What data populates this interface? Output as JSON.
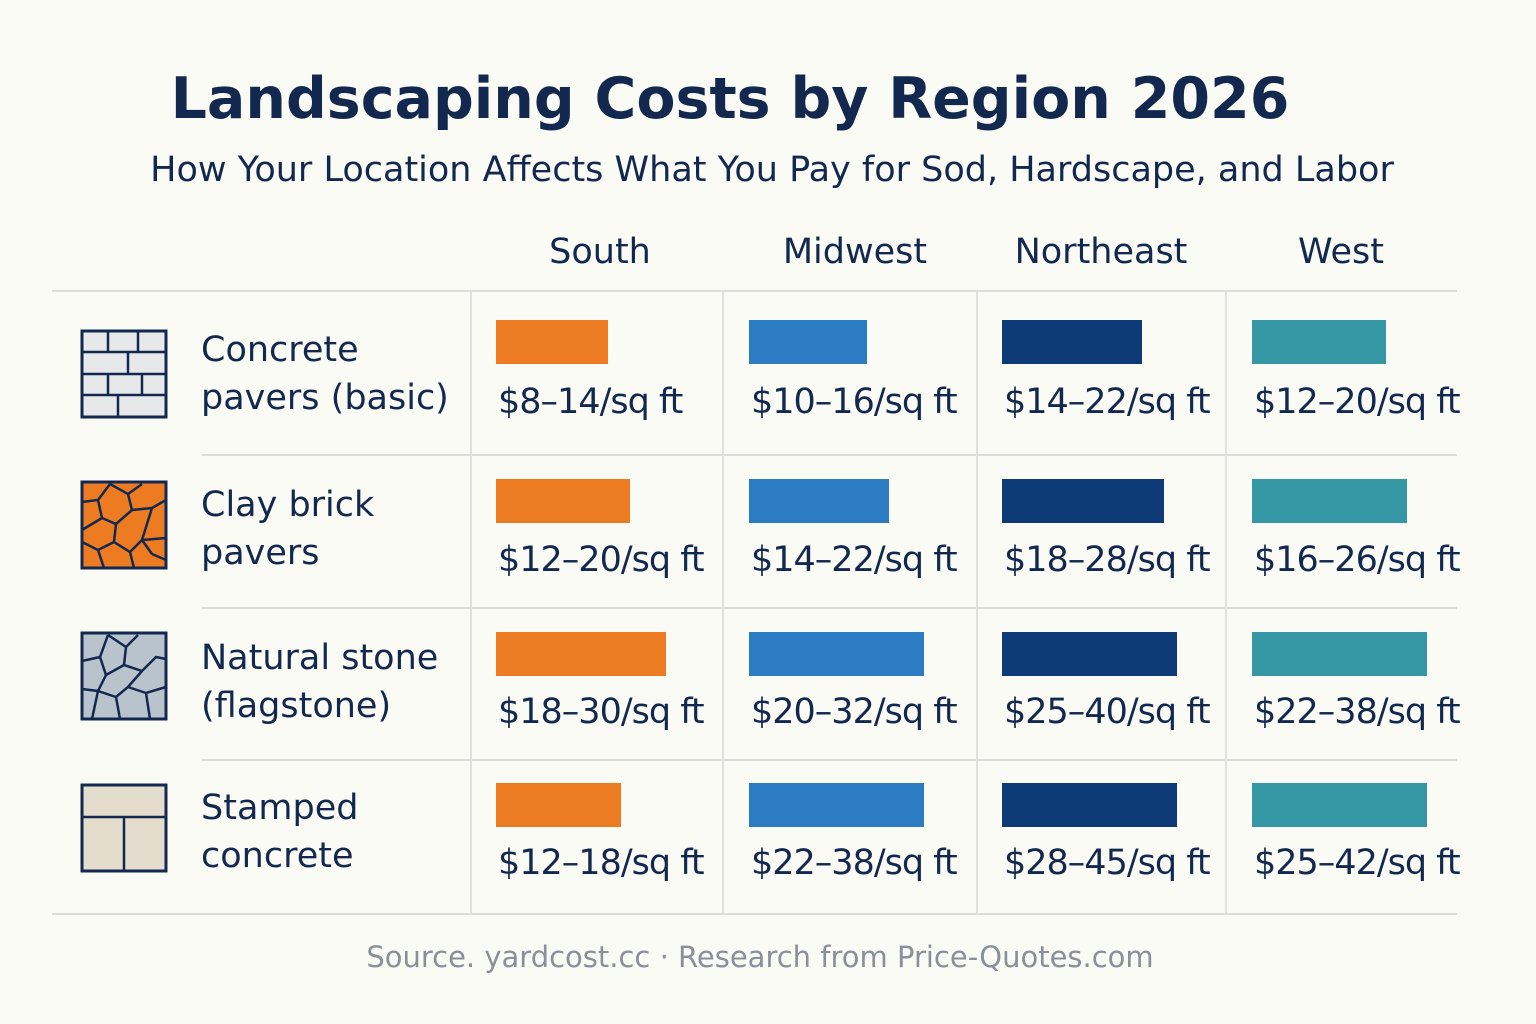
{
  "header": {
    "title": "Landscaping Costs by Region 2026",
    "subtitle": "How Your Location Affects What You Pay for Sod, Hardscape, and Labor"
  },
  "source": "Source. yardcost.cc · Research from Price-Quotes.com",
  "colors": {
    "South": "#ec7b22",
    "Midwest": "#2b7cc3",
    "Northeast": "#0e3a78",
    "West": "#3597a3"
  },
  "chart_data": {
    "type": "table",
    "title": "Landscaping Costs by Region 2026",
    "subtitle": "How Your Location Affects What You Pay for Sod, Hardscape, and Labor",
    "unit": "$/sq ft",
    "regions": [
      "South",
      "Midwest",
      "Northeast",
      "West"
    ],
    "rows": [
      {
        "material": [
          "Concrete",
          "pavers (basic)"
        ],
        "icon": "concrete-paver-icon",
        "labels": [
          "$8–14/sq ft",
          "$10–16/sq ft",
          "$14–22/sq ft",
          "$12–20/sq ft"
        ],
        "ranges": [
          [
            8,
            14
          ],
          [
            10,
            16
          ],
          [
            14,
            22
          ],
          [
            12,
            20
          ]
        ]
      },
      {
        "material": [
          "Clay brick",
          "pavers"
        ],
        "icon": "clay-brick-icon",
        "labels": [
          "$12–20/sq ft",
          "$14–22/sq ft",
          "$18–28/sq ft",
          "$16–26/sq ft"
        ],
        "ranges": [
          [
            12,
            20
          ],
          [
            14,
            22
          ],
          [
            18,
            28
          ],
          [
            16,
            26
          ]
        ]
      },
      {
        "material": [
          "Natural stone",
          "(flagstone)"
        ],
        "icon": "flagstone-icon",
        "labels": [
          "$18–30/sq ft",
          "$20–32/sq ft",
          "$25–40/sq ft",
          "$22–38/sq ft"
        ],
        "ranges": [
          [
            18,
            30
          ],
          [
            20,
            32
          ],
          [
            25,
            40
          ],
          [
            22,
            38
          ]
        ]
      },
      {
        "material": [
          "Stamped",
          "concrete"
        ],
        "icon": "stamped-concrete-icon",
        "labels": [
          "$12–18/sq ft",
          "$22–38/sq ft",
          "$28–45/sq ft",
          "$25–42/sq ft"
        ],
        "ranges": [
          [
            12,
            18
          ],
          [
            22,
            38
          ],
          [
            28,
            45
          ],
          [
            25,
            42
          ]
        ]
      }
    ]
  }
}
